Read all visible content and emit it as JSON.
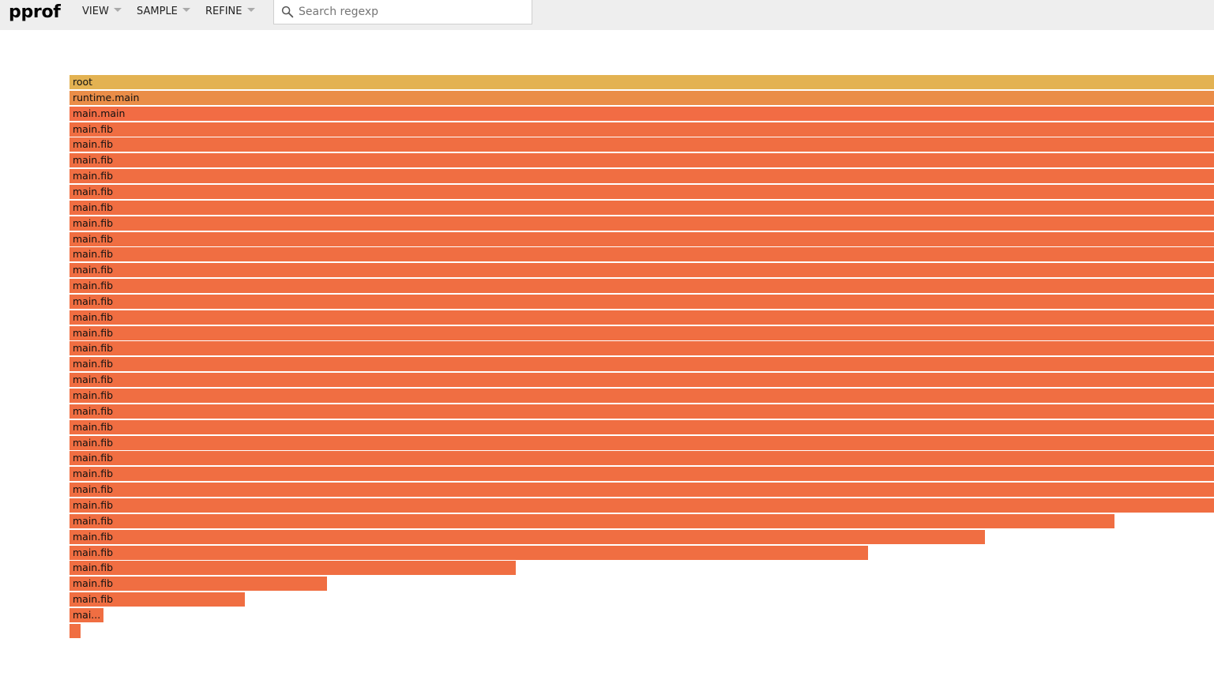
{
  "header": {
    "brand": "pprof",
    "menus": [
      {
        "label": "VIEW"
      },
      {
        "label": "SAMPLE"
      },
      {
        "label": "REFINE"
      }
    ],
    "search": {
      "placeholder": "Search regexp",
      "value": ""
    }
  },
  "colors": {
    "header_bg": "#eeeeee",
    "root": "#e3b252",
    "runtime": "#ea8d48",
    "main_main": "#f26c44",
    "fib": "#f06e42"
  },
  "flame": {
    "frames": [
      {
        "label": "root",
        "share": 1.0,
        "color": "root"
      },
      {
        "label": "runtime.main",
        "share": 1.0,
        "color": "runtime"
      },
      {
        "label": "main.main",
        "share": 1.0,
        "color": "main_main"
      },
      {
        "label": "main.fib",
        "share": 1.0,
        "color": "fib"
      },
      {
        "label": "main.fib",
        "share": 1.0,
        "color": "fib"
      },
      {
        "label": "main.fib",
        "share": 1.0,
        "color": "fib"
      },
      {
        "label": "main.fib",
        "share": 1.0,
        "color": "fib"
      },
      {
        "label": "main.fib",
        "share": 1.0,
        "color": "fib"
      },
      {
        "label": "main.fib",
        "share": 1.0,
        "color": "fib"
      },
      {
        "label": "main.fib",
        "share": 1.0,
        "color": "fib"
      },
      {
        "label": "main.fib",
        "share": 1.0,
        "color": "fib"
      },
      {
        "label": "main.fib",
        "share": 1.0,
        "color": "fib"
      },
      {
        "label": "main.fib",
        "share": 1.0,
        "color": "fib"
      },
      {
        "label": "main.fib",
        "share": 1.0,
        "color": "fib"
      },
      {
        "label": "main.fib",
        "share": 1.0,
        "color": "fib"
      },
      {
        "label": "main.fib",
        "share": 1.0,
        "color": "fib"
      },
      {
        "label": "main.fib",
        "share": 1.0,
        "color": "fib"
      },
      {
        "label": "main.fib",
        "share": 1.0,
        "color": "fib"
      },
      {
        "label": "main.fib",
        "share": 1.0,
        "color": "fib"
      },
      {
        "label": "main.fib",
        "share": 1.0,
        "color": "fib"
      },
      {
        "label": "main.fib",
        "share": 1.0,
        "color": "fib"
      },
      {
        "label": "main.fib",
        "share": 1.0,
        "color": "fib"
      },
      {
        "label": "main.fib",
        "share": 1.0,
        "color": "fib"
      },
      {
        "label": "main.fib",
        "share": 1.0,
        "color": "fib"
      },
      {
        "label": "main.fib",
        "share": 1.0,
        "color": "fib"
      },
      {
        "label": "main.fib",
        "share": 1.0,
        "color": "fib"
      },
      {
        "label": "main.fib",
        "share": 1.0,
        "color": "fib"
      },
      {
        "label": "main.fib",
        "share": 1.0,
        "color": "fib"
      },
      {
        "label": "main.fib",
        "share": 0.913,
        "color": "fib"
      },
      {
        "label": "main.fib",
        "share": 0.8,
        "color": "fib"
      },
      {
        "label": "main.fib",
        "share": 0.698,
        "color": "fib"
      },
      {
        "label": "main.fib",
        "share": 0.39,
        "color": "fib"
      },
      {
        "label": "main.fib",
        "share": 0.225,
        "color": "fib"
      },
      {
        "label": "main.fib",
        "share": 0.153,
        "color": "fib"
      },
      {
        "label": "mai...",
        "share": 0.03,
        "color": "fib"
      },
      {
        "label": "",
        "share": 0.01,
        "color": "fib"
      }
    ]
  }
}
